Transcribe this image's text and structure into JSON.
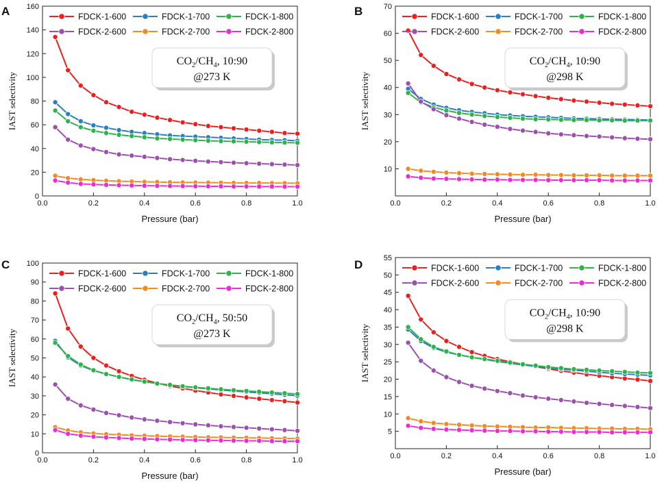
{
  "colors": {
    "FDCK-1-600": "#e8201f",
    "FDCK-1-700": "#2b7fc1",
    "FDCK-1-800": "#2db34a",
    "FDCK-2-600": "#9b4fae",
    "FDCK-2-700": "#f28a1d",
    "FDCK-2-800": "#ec2bd6"
  },
  "chart_data": [
    {
      "panel": "A",
      "type": "line",
      "xlabel": "Pressure (bar)",
      "ylabel": "IAST selectivity",
      "xlim": [
        0.0,
        1.0
      ],
      "ylim": [
        0,
        160
      ],
      "xticks": [
        "0.0",
        "0.2",
        "0.4",
        "0.6",
        "0.8",
        "1.0"
      ],
      "yticks": [
        "0",
        "20",
        "40",
        "60",
        "80",
        "100",
        "120",
        "140",
        "160"
      ],
      "annotation": {
        "gas": "CO",
        "sub": "2",
        "rest": "/CH",
        "sub2": "4",
        "ratio": ", 10:90",
        "temp": "@273 K"
      },
      "x": [
        0.05,
        0.1,
        0.15,
        0.2,
        0.25,
        0.3,
        0.35,
        0.4,
        0.45,
        0.5,
        0.55,
        0.6,
        0.65,
        0.7,
        0.75,
        0.8,
        0.85,
        0.9,
        0.95,
        1.0
      ],
      "series": [
        {
          "name": "FDCK-1-600",
          "values": [
            134,
            106,
            93,
            85,
            79,
            75,
            71,
            68.5,
            66,
            64,
            62,
            60.5,
            59,
            58,
            57,
            56,
            55,
            54,
            53,
            52.5
          ]
        },
        {
          "name": "FDCK-1-700",
          "values": [
            79,
            69,
            63,
            59.5,
            57.5,
            55.5,
            54,
            53,
            52,
            51,
            50.5,
            50,
            49.5,
            49,
            48.5,
            48,
            47.5,
            47.2,
            47,
            46.5
          ]
        },
        {
          "name": "FDCK-1-800",
          "values": [
            72,
            63,
            58,
            55,
            53,
            51.5,
            50.5,
            49.5,
            48.5,
            48,
            47.5,
            47,
            46.5,
            46.2,
            46,
            45.7,
            45.4,
            45.2,
            45,
            44.8
          ]
        },
        {
          "name": "FDCK-2-600",
          "values": [
            58,
            47.5,
            42.5,
            39.5,
            37,
            35,
            34,
            33,
            32,
            31,
            30.3,
            29.6,
            29,
            28.5,
            28,
            27.6,
            27.2,
            26.8,
            26.4,
            26
          ]
        },
        {
          "name": "FDCK-2-700",
          "values": [
            17,
            15,
            14,
            13.3,
            12.8,
            12.4,
            12.1,
            11.9,
            11.7,
            11.5,
            11.4,
            11.3,
            11.2,
            11.1,
            11,
            10.9,
            10.9,
            10.8,
            10.8,
            10.7
          ]
        },
        {
          "name": "FDCK-2-800",
          "values": [
            13,
            11.2,
            10.2,
            9.7,
            9.3,
            9,
            8.8,
            8.6,
            8.5,
            8.4,
            8.3,
            8.2,
            8.1,
            8.1,
            8,
            8,
            7.9,
            7.9,
            7.8,
            7.8
          ]
        }
      ]
    },
    {
      "panel": "B",
      "type": "line",
      "xlabel": "Pressure (bar)",
      "ylabel": "IAST selectivity",
      "xlim": [
        0.0,
        1.0
      ],
      "ylim": [
        0,
        70
      ],
      "xticks": [
        "0.0",
        "0.2",
        "0.4",
        "0.6",
        "0.8",
        "1.0"
      ],
      "yticks": [
        "10",
        "20",
        "30",
        "40",
        "50",
        "60",
        "70"
      ],
      "annotation": {
        "gas": "CO",
        "sub": "2",
        "rest": "/CH",
        "sub2": "4",
        "ratio": ", 10:90",
        "temp": "@298 K"
      },
      "x": [
        0.05,
        0.1,
        0.15,
        0.2,
        0.25,
        0.3,
        0.35,
        0.4,
        0.45,
        0.5,
        0.55,
        0.6,
        0.65,
        0.7,
        0.75,
        0.8,
        0.85,
        0.9,
        0.95,
        1.0
      ],
      "series": [
        {
          "name": "FDCK-1-600",
          "values": [
            61,
            52,
            48,
            45,
            43,
            41.3,
            40,
            39,
            38.2,
            37.5,
            36.8,
            36.2,
            35.7,
            35.2,
            34.8,
            34.4,
            34,
            33.7,
            33.4,
            33.1
          ]
        },
        {
          "name": "FDCK-1-700",
          "values": [
            39.5,
            35.8,
            33.7,
            32.5,
            31.6,
            31,
            30.5,
            30,
            29.7,
            29.4,
            29.2,
            29,
            28.8,
            28.6,
            28.5,
            28.4,
            28.3,
            28.2,
            28.1,
            28
          ]
        },
        {
          "name": "FDCK-1-800",
          "values": [
            38,
            34.5,
            32.7,
            31.5,
            30.6,
            30,
            29.5,
            29.1,
            28.8,
            28.5,
            28.3,
            28.2,
            28.1,
            28,
            28,
            27.9,
            27.9,
            27.8,
            27.8,
            27.8
          ]
        },
        {
          "name": "FDCK-2-600",
          "values": [
            41.5,
            34.8,
            32,
            29.8,
            28.5,
            27.3,
            26.3,
            25.5,
            24.7,
            24.1,
            23.6,
            23.1,
            22.7,
            22.4,
            22.1,
            21.9,
            21.6,
            21.3,
            21.1,
            20.9
          ]
        },
        {
          "name": "FDCK-2-700",
          "values": [
            10,
            9.3,
            8.9,
            8.6,
            8.4,
            8.2,
            8.1,
            8,
            7.9,
            7.8,
            7.8,
            7.7,
            7.7,
            7.6,
            7.6,
            7.6,
            7.5,
            7.5,
            7.5,
            7.5
          ]
        },
        {
          "name": "FDCK-2-800",
          "values": [
            7.2,
            6.7,
            6.4,
            6.3,
            6.2,
            6.1,
            6.0,
            6.0,
            5.9,
            5.9,
            5.9,
            5.8,
            5.8,
            5.8,
            5.8,
            5.8,
            5.7,
            5.7,
            5.7,
            5.7
          ]
        }
      ]
    },
    {
      "panel": "C",
      "type": "line",
      "xlabel": "Pressure (bar)",
      "ylabel": "IAST selectivity",
      "xlim": [
        0.0,
        1.0
      ],
      "ylim": [
        0,
        100
      ],
      "xticks": [
        "0.0",
        "0.2",
        "0.4",
        "0.6",
        "0.8",
        "1.0"
      ],
      "yticks": [
        "0",
        "10",
        "20",
        "30",
        "40",
        "50",
        "60",
        "70",
        "80",
        "90",
        "100"
      ],
      "annotation": {
        "gas": "CO",
        "sub": "2",
        "rest": "/CH",
        "sub2": "4",
        "ratio": ", 50:50",
        "temp": "@273 K"
      },
      "x": [
        0.05,
        0.1,
        0.15,
        0.2,
        0.25,
        0.3,
        0.35,
        0.4,
        0.45,
        0.5,
        0.55,
        0.6,
        0.65,
        0.7,
        0.75,
        0.8,
        0.85,
        0.9,
        0.95,
        1.0
      ],
      "series": [
        {
          "name": "FDCK-1-600",
          "values": [
            84,
            65.5,
            56,
            50,
            46,
            43,
            40.5,
            38.5,
            36.7,
            35.2,
            34,
            32.8,
            31.8,
            30.8,
            30,
            29.2,
            28.5,
            27.8,
            27.2,
            26.5
          ]
        },
        {
          "name": "FDCK-1-700",
          "values": [
            59,
            50.3,
            46,
            43.3,
            41.5,
            40,
            38.5,
            37.5,
            36.5,
            35.7,
            35,
            34.3,
            33.7,
            33.1,
            32.6,
            32.1,
            31.6,
            31.1,
            30.6,
            30.1
          ]
        },
        {
          "name": "FDCK-1-800",
          "values": [
            58,
            51,
            46.5,
            43.5,
            41.5,
            40,
            38.7,
            37.5,
            36.5,
            35.8,
            35.1,
            34.5,
            34,
            33.5,
            33,
            32.6,
            32.2,
            31.8,
            31.4,
            31
          ]
        },
        {
          "name": "FDCK-2-600",
          "values": [
            36,
            28.5,
            25,
            22.8,
            21,
            19.8,
            18.6,
            17.6,
            16.9,
            16.2,
            15.6,
            15,
            14.5,
            14,
            13.6,
            13.2,
            12.8,
            12.4,
            12,
            11.6
          ]
        },
        {
          "name": "FDCK-2-700",
          "values": [
            13.5,
            11.8,
            10.8,
            10.2,
            9.8,
            9.5,
            9.2,
            9,
            8.8,
            8.6,
            8.5,
            8.3,
            8.2,
            8.1,
            8,
            7.9,
            7.8,
            7.7,
            7.6,
            7.5
          ]
        },
        {
          "name": "FDCK-2-800",
          "values": [
            12,
            10,
            9.1,
            8.5,
            8.1,
            7.8,
            7.5,
            7.3,
            7.1,
            7,
            6.8,
            6.7,
            6.6,
            6.5,
            6.4,
            6.3,
            6.3,
            6.2,
            6.1,
            6.1
          ]
        }
      ]
    },
    {
      "panel": "D",
      "type": "line",
      "xlabel": "Pressure (bar)",
      "ylabel": "IAST selectivity",
      "xlim": [
        0.0,
        1.0
      ],
      "ylim": [
        0,
        55
      ],
      "xticks": [
        "0.0",
        "0.2",
        "0.4",
        "0.6",
        "0.8",
        "1.0"
      ],
      "yticks": [
        "5",
        "10",
        "15",
        "20",
        "25",
        "30",
        "35",
        "40",
        "45",
        "50",
        "55"
      ],
      "annotation": {
        "gas": "CO",
        "sub": "2",
        "rest": "/CH",
        "sub2": "4",
        "ratio": ", 10:90",
        "temp": "@298 K"
      },
      "x": [
        0.05,
        0.1,
        0.15,
        0.2,
        0.25,
        0.3,
        0.35,
        0.4,
        0.45,
        0.5,
        0.55,
        0.6,
        0.65,
        0.7,
        0.75,
        0.8,
        0.85,
        0.9,
        0.95,
        1.0
      ],
      "series": [
        {
          "name": "FDCK-1-600",
          "values": [
            44,
            37.2,
            33.5,
            31,
            29.3,
            27.8,
            26.7,
            25.8,
            25,
            24.3,
            23.6,
            23,
            22.4,
            21.9,
            21.4,
            21,
            20.6,
            20.2,
            19.9,
            19.5
          ]
        },
        {
          "name": "FDCK-1-700",
          "values": [
            34.3,
            31,
            29,
            27.8,
            27,
            26.3,
            25.7,
            25.1,
            24.6,
            24.1,
            23.7,
            23.3,
            22.9,
            22.6,
            22.3,
            22,
            21.7,
            21.5,
            21.3,
            21.1
          ]
        },
        {
          "name": "FDCK-1-800",
          "values": [
            35,
            31.5,
            29.3,
            28,
            27,
            26.3,
            25.8,
            25.3,
            24.8,
            24.3,
            23.9,
            23.5,
            23.2,
            22.9,
            22.7,
            22.5,
            22.3,
            22.1,
            21.9,
            21.8
          ]
        },
        {
          "name": "FDCK-2-600",
          "values": [
            30.5,
            25.3,
            22.5,
            20.6,
            19.2,
            18.1,
            17.3,
            16.6,
            16,
            15.3,
            14.8,
            14.4,
            14,
            13.6,
            13.2,
            12.9,
            12.6,
            12.3,
            12,
            11.7
          ]
        },
        {
          "name": "FDCK-2-700",
          "values": [
            8.8,
            7.9,
            7.4,
            7.1,
            6.9,
            6.7,
            6.5,
            6.4,
            6.3,
            6.2,
            6.1,
            6.1,
            6,
            5.9,
            5.9,
            5.8,
            5.8,
            5.7,
            5.7,
            5.6
          ]
        },
        {
          "name": "FDCK-2-800",
          "values": [
            6.6,
            6.0,
            5.7,
            5.5,
            5.4,
            5.3,
            5.2,
            5.1,
            5.1,
            5.0,
            5.0,
            4.9,
            4.9,
            4.8,
            4.8,
            4.8,
            4.7,
            4.7,
            4.7,
            4.7
          ]
        }
      ]
    }
  ]
}
